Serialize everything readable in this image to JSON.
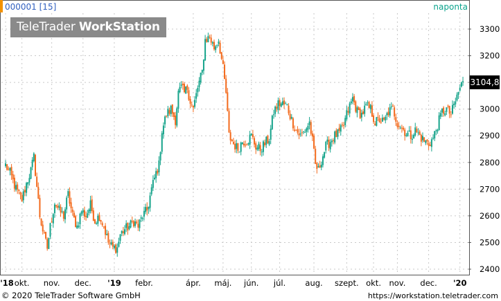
{
  "chart_title": "000001 [15]",
  "period_label": "naponta",
  "brand": {
    "light": "TeleTrader ",
    "bold": "WorkStation"
  },
  "copyright": "© 2020 TeleTrader Software GmbH",
  "url": "https://workstation.teletrader.com",
  "last_price_label": "3104,8",
  "colors": {
    "up": "#15a38a",
    "down": "#f36a1c",
    "accent": "#f39200",
    "grid": "#c8c8c8"
  },
  "chart_data": {
    "type": "candlestick",
    "ylim": [
      2380,
      3350
    ],
    "y_ticks": [
      2400,
      2500,
      2600,
      2700,
      2800,
      2900,
      3000,
      3100,
      3200,
      3300
    ],
    "x_ticks": [
      {
        "label": "'18",
        "t": 0
      },
      {
        "label": "okt.",
        "t": 11
      },
      {
        "label": "nov.",
        "t": 31
      },
      {
        "label": "dec.",
        "t": 52
      },
      {
        "label": "'19",
        "t": 73
      },
      {
        "label": "febr.",
        "t": 93
      },
      {
        "label": "ápr.",
        "t": 126
      },
      {
        "label": "máj.",
        "t": 146
      },
      {
        "label": "jún.",
        "t": 165
      },
      {
        "label": "júl.",
        "t": 184
      },
      {
        "label": "aug.",
        "t": 207
      },
      {
        "label": "szept.",
        "t": 229
      },
      {
        "label": "okt.",
        "t": 247
      },
      {
        "label": "nov.",
        "t": 263
      },
      {
        "label": "dec.",
        "t": 284
      },
      {
        "label": "'20",
        "t": 305
      }
    ],
    "path_points": [
      [
        0,
        2790
      ],
      [
        3,
        2760
      ],
      [
        7,
        2700
      ],
      [
        11,
        2660
      ],
      [
        14,
        2720
      ],
      [
        17,
        2770
      ],
      [
        19,
        2820
      ],
      [
        21,
        2710
      ],
      [
        23,
        2600
      ],
      [
        26,
        2520
      ],
      [
        28,
        2480
      ],
      [
        30,
        2560
      ],
      [
        33,
        2650
      ],
      [
        36,
        2620
      ],
      [
        39,
        2600
      ],
      [
        42,
        2680
      ],
      [
        45,
        2600
      ],
      [
        48,
        2560
      ],
      [
        51,
        2620
      ],
      [
        54,
        2600
      ],
      [
        57,
        2640
      ],
      [
        60,
        2580
      ],
      [
        63,
        2600
      ],
      [
        66,
        2560
      ],
      [
        69,
        2500
      ],
      [
        72,
        2480
      ],
      [
        75,
        2480
      ],
      [
        77,
        2530
      ],
      [
        80,
        2550
      ],
      [
        83,
        2560
      ],
      [
        86,
        2580
      ],
      [
        89,
        2560
      ],
      [
        92,
        2600
      ],
      [
        95,
        2620
      ],
      [
        98,
        2700
      ],
      [
        101,
        2760
      ],
      [
        103,
        2790
      ],
      [
        105,
        2920
      ],
      [
        108,
        2980
      ],
      [
        111,
        3000
      ],
      [
        114,
        2960
      ],
      [
        116,
        3060
      ],
      [
        118,
        3080
      ],
      [
        120,
        3060
      ],
      [
        122,
        3080
      ],
      [
        124,
        3030
      ],
      [
        126,
        3000
      ],
      [
        129,
        3080
      ],
      [
        132,
        3140
      ],
      [
        134,
        3260
      ],
      [
        137,
        3270
      ],
      [
        140,
        3230
      ],
      [
        143,
        3260
      ],
      [
        146,
        3150
      ],
      [
        148,
        3060
      ],
      [
        150,
        2900
      ],
      [
        153,
        2870
      ],
      [
        156,
        2850
      ],
      [
        159,
        2880
      ],
      [
        162,
        2880
      ],
      [
        165,
        2900
      ],
      [
        168,
        2860
      ],
      [
        171,
        2850
      ],
      [
        174,
        2870
      ],
      [
        177,
        2890
      ],
      [
        180,
        2990
      ],
      [
        183,
        3020
      ],
      [
        186,
        3020
      ],
      [
        189,
        3010
      ],
      [
        192,
        2960
      ],
      [
        195,
        2920
      ],
      [
        198,
        2900
      ],
      [
        201,
        2920
      ],
      [
        204,
        2950
      ],
      [
        206,
        2880
      ],
      [
        208,
        2790
      ],
      [
        210,
        2770
      ],
      [
        212,
        2810
      ],
      [
        215,
        2860
      ],
      [
        218,
        2880
      ],
      [
        221,
        2900
      ],
      [
        224,
        2910
      ],
      [
        227,
        2940
      ],
      [
        229,
        2980
      ],
      [
        231,
        3010
      ],
      [
        233,
        3040
      ],
      [
        236,
        2990
      ],
      [
        239,
        2980
      ],
      [
        242,
        3010
      ],
      [
        245,
        3000
      ],
      [
        248,
        2950
      ],
      [
        251,
        2960
      ],
      [
        254,
        2950
      ],
      [
        257,
        2990
      ],
      [
        260,
        3000
      ],
      [
        263,
        2950
      ],
      [
        266,
        2930
      ],
      [
        269,
        2910
      ],
      [
        272,
        2900
      ],
      [
        275,
        2920
      ],
      [
        278,
        2900
      ],
      [
        281,
        2880
      ],
      [
        284,
        2870
      ],
      [
        287,
        2890
      ],
      [
        290,
        2940
      ],
      [
        293,
        2990
      ],
      [
        296,
        3000
      ],
      [
        299,
        2980
      ],
      [
        302,
        3030
      ],
      [
        305,
        3080
      ],
      [
        307,
        3104.8
      ]
    ]
  }
}
